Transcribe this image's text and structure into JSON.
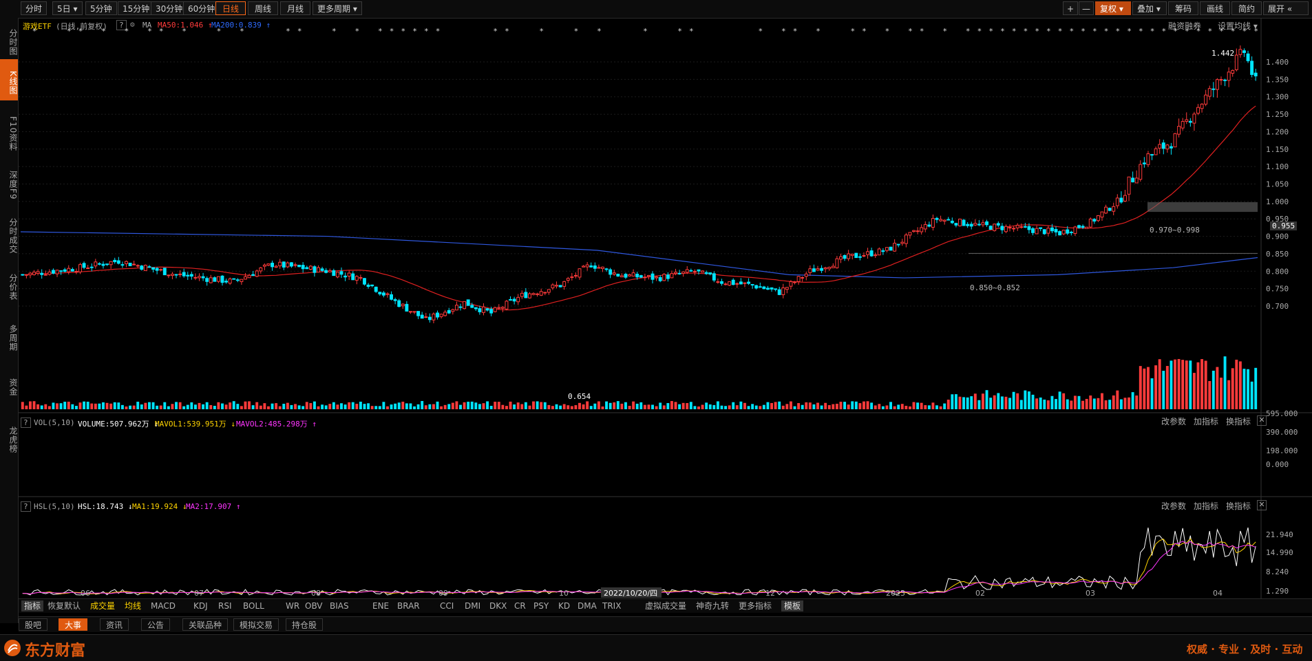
{
  "toolbar": {
    "periods": [
      "分时",
      "5日",
      "5分钟",
      "15分钟",
      "30分钟",
      "60分钟",
      "日线",
      "周线",
      "月线",
      "更多周期"
    ],
    "active_period": "日线",
    "right_buttons": [
      "复权",
      "叠加",
      "筹码",
      "画线",
      "简约",
      "展开"
    ],
    "plus": "+",
    "minus": "—"
  },
  "sidebar": {
    "items": [
      "分时图",
      "K线图",
      "F10资料",
      "深度F9",
      "分时成交",
      "分价表",
      "多周期",
      "资金",
      "龙虎榜"
    ],
    "active": "K线图"
  },
  "header": {
    "name": "游戏ETF",
    "mode": "(日线,前复权)",
    "help": "?",
    "ma_label": "MA",
    "ma50": "MA50:1.046",
    "ma200": "MA200:0.839",
    "right_links": [
      "融资融券",
      "设置均线"
    ]
  },
  "price_chart": {
    "y_ticks": [
      "1.400",
      "1.350",
      "1.300",
      "1.250",
      "1.200",
      "1.150",
      "1.100",
      "1.050",
      "1.000",
      "0.950",
      "0.900",
      "0.850",
      "0.800",
      "0.750",
      "0.700"
    ],
    "current_price": "0.955",
    "high_label": "1.442",
    "low_label": "0.654",
    "zone_upper": "0.970~0.998",
    "zone_lower": "0.850~0.852",
    "colors": {
      "up": "#ff3b3b",
      "down": "#00e5ff",
      "ma50": "#e02020",
      "ma200": "#2f58e0",
      "zone": "#666666"
    }
  },
  "volume_panel": {
    "title": "VOL(5,10)",
    "volume": "VOLUME:507.962万",
    "mavol1": "MAVOL1:539.951万",
    "mavol2": "MAVOL2:485.298万",
    "y_ticks": [
      "595.000",
      "390.000",
      "198.000",
      "0.000"
    ],
    "links": [
      "改参数",
      "加指标",
      "换指标"
    ]
  },
  "hsl_panel": {
    "title": "HSL(5,10)",
    "hsl": "HSL:18.743",
    "ma1": "MA1:19.924",
    "ma2": "MA2:17.907",
    "y_ticks": [
      "21.940",
      "14.990",
      "8.240",
      "1.290"
    ],
    "links": [
      "改参数",
      "加指标",
      "换指标"
    ]
  },
  "x_axis": {
    "labels": [
      "06",
      "07",
      "08",
      "09",
      "10",
      "2022/10/20/四",
      "12",
      "2023",
      "02",
      "03",
      "04"
    ]
  },
  "indicators": {
    "items": [
      "指标",
      "恢复默认",
      "成交量",
      "均线",
      "MACD",
      "KDJ",
      "RSI",
      "BOLL",
      "WR",
      "OBV",
      "BIAS",
      "ENE",
      "BRAR",
      "CCI",
      "DMI",
      "DKX",
      "CR",
      "PSY",
      "KD",
      "DMA",
      "TRIX",
      "虚拟成交量",
      "神奇九转",
      "更多指标",
      "模板"
    ]
  },
  "tabs": {
    "items": [
      "股吧",
      "大事",
      "资讯",
      "公告",
      "关联品种",
      "模拟交易",
      "持仓股"
    ],
    "active": "大事"
  },
  "footer": {
    "brand": "东方财富",
    "slogan": "权威 · 专业 · 及时 · 互动"
  }
}
